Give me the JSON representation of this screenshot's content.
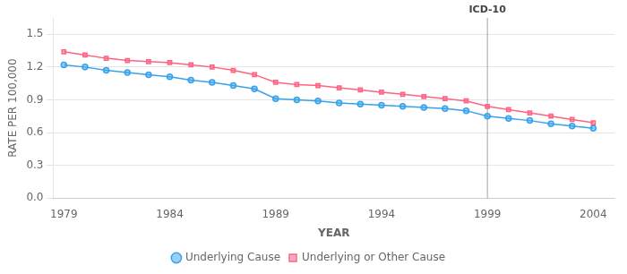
{
  "chart_data": {
    "type": "line",
    "x_label": "YEAR",
    "y_label": "RATE PER 100,000",
    "x": [
      1979,
      1980,
      1981,
      1982,
      1983,
      1984,
      1985,
      1986,
      1987,
      1988,
      1989,
      1990,
      1991,
      1992,
      1993,
      1994,
      1995,
      1996,
      1997,
      1998,
      1999,
      2000,
      2001,
      2002,
      2003,
      2004
    ],
    "series": [
      {
        "name": "Underlying Cause",
        "marker": "circle",
        "values": [
          1.22,
          1.2,
          1.17,
          1.15,
          1.13,
          1.11,
          1.08,
          1.06,
          1.03,
          1.0,
          0.91,
          0.9,
          0.89,
          0.87,
          0.86,
          0.85,
          0.84,
          0.83,
          0.82,
          0.8,
          0.75,
          0.73,
          0.71,
          0.68,
          0.66,
          0.64
        ]
      },
      {
        "name": "Underlying or Other Cause",
        "marker": "square",
        "values": [
          1.34,
          1.31,
          1.28,
          1.26,
          1.25,
          1.24,
          1.22,
          1.2,
          1.17,
          1.13,
          1.06,
          1.04,
          1.03,
          1.01,
          0.99,
          0.97,
          0.95,
          0.93,
          0.91,
          0.89,
          0.84,
          0.81,
          0.78,
          0.75,
          0.72,
          0.69
        ]
      }
    ],
    "annotations": [
      {
        "x": 1999,
        "text": "ICD-10"
      }
    ],
    "xlim": [
      1978.5,
      2005.0
    ],
    "xticks": [
      1979,
      1984,
      1989,
      1994,
      1999,
      2004
    ],
    "ylim": [
      0.0,
      1.65
    ],
    "yticks": [
      {
        "value": 0.0,
        "label": "0.0"
      },
      0.3,
      0.6,
      0.9,
      1.2,
      1.5
    ],
    "grid": "y",
    "legend": "bottom"
  }
}
